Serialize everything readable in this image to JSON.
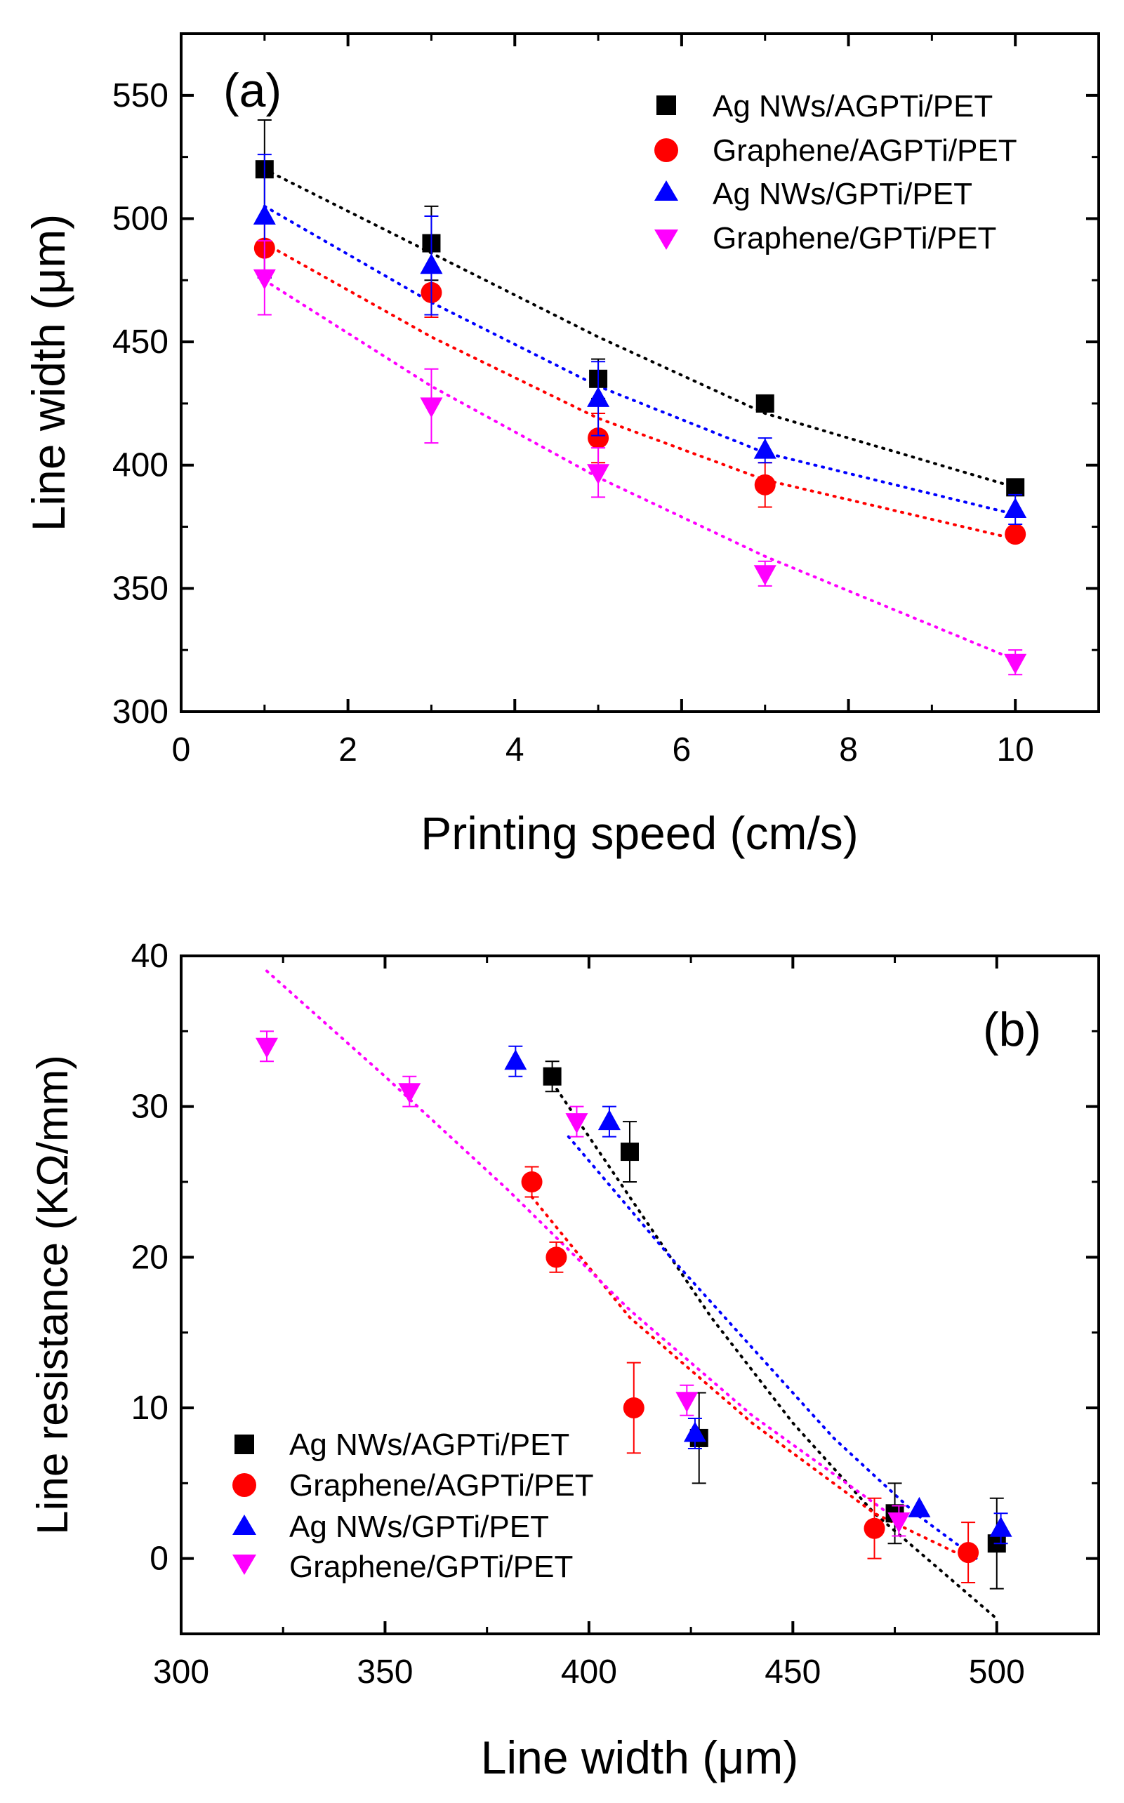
{
  "chart_data": [
    {
      "id": "a",
      "type": "scatter",
      "panel_label": "(a)",
      "xlabel": "Printing speed (cm/s)",
      "ylabel": "Line width (μm)",
      "xlim": [
        0,
        11
      ],
      "ylim": [
        300,
        575
      ],
      "x_ticks": [
        0,
        2,
        4,
        6,
        8,
        10
      ],
      "x_tick_labels": [
        "0",
        "2",
        "4",
        "6",
        "8",
        "10"
      ],
      "y_ticks": [
        300,
        350,
        400,
        450,
        500,
        550
      ],
      "y_tick_labels": [
        "300",
        "350",
        "400",
        "450",
        "500",
        "550"
      ],
      "legend_position": "top-right",
      "series": [
        {
          "name": "Ag NWs/AGPTi/PET",
          "marker": "square",
          "color": "#000000",
          "points": [
            {
              "x": 1,
              "y": 520,
              "err": 20
            },
            {
              "x": 3,
              "y": 490,
              "err": 15
            },
            {
              "x": 5,
              "y": 435,
              "err": 8
            },
            {
              "x": 7,
              "y": 425,
              "err": 0
            },
            {
              "x": 10,
              "y": 391,
              "err": 0
            }
          ],
          "trend": [
            [
              1,
              520
            ],
            [
              3,
              486
            ],
            [
              5,
              452
            ],
            [
              7,
              421
            ],
            [
              10,
              391
            ]
          ]
        },
        {
          "name": "Graphene/AGPTi/PET",
          "marker": "circle",
          "color": "#ff0000",
          "points": [
            {
              "x": 1,
              "y": 488,
              "err": 12
            },
            {
              "x": 3,
              "y": 470,
              "err": 10
            },
            {
              "x": 5,
              "y": 411,
              "err": 10
            },
            {
              "x": 7,
              "y": 392,
              "err": 9
            },
            {
              "x": 10,
              "y": 372,
              "err": 0
            }
          ],
          "trend": [
            [
              1,
              490
            ],
            [
              3,
              452
            ],
            [
              5,
              419
            ],
            [
              7,
              394
            ],
            [
              10,
              370
            ]
          ]
        },
        {
          "name": "Ag NWs/GPTi/PET",
          "marker": "triangle-up",
          "color": "#0000ff",
          "points": [
            {
              "x": 1,
              "y": 501,
              "err": 25
            },
            {
              "x": 3,
              "y": 481,
              "err": 20
            },
            {
              "x": 5,
              "y": 427,
              "err": 15
            },
            {
              "x": 7,
              "y": 406,
              "err": 5
            },
            {
              "x": 10,
              "y": 382,
              "err": 6
            }
          ],
          "trend": [
            [
              1,
              505
            ],
            [
              3,
              466
            ],
            [
              5,
              432
            ],
            [
              7,
              405
            ],
            [
              10,
              380
            ]
          ]
        },
        {
          "name": "Graphene/GPTi/PET",
          "marker": "triangle-down",
          "color": "#ff00ff",
          "points": [
            {
              "x": 1,
              "y": 476,
              "err": 15
            },
            {
              "x": 3,
              "y": 424,
              "err": 15
            },
            {
              "x": 5,
              "y": 397,
              "err": 10
            },
            {
              "x": 7,
              "y": 356,
              "err": 5
            },
            {
              "x": 10,
              "y": 320,
              "err": 5
            }
          ],
          "trend": [
            [
              1,
              475
            ],
            [
              3,
              432
            ],
            [
              5,
              395
            ],
            [
              7,
              363
            ],
            [
              10,
              321
            ]
          ]
        }
      ]
    },
    {
      "id": "b",
      "type": "scatter",
      "panel_label": "(b)",
      "xlabel": "Line width (μm)",
      "ylabel": "Line resistance (KΩ/mm)",
      "xlim": [
        300,
        525
      ],
      "ylim": [
        -5,
        40
      ],
      "x_ticks": [
        300,
        350,
        400,
        450,
        500
      ],
      "x_tick_labels": [
        "300",
        "350",
        "400",
        "450",
        "500"
      ],
      "y_ticks": [
        0,
        10,
        20,
        30,
        40
      ],
      "y_tick_labels": [
        "0",
        "10",
        "20",
        "30",
        "40"
      ],
      "legend_position": "bottom-left",
      "series": [
        {
          "name": "Ag NWs/AGPTi/PET",
          "marker": "square",
          "color": "#000000",
          "points": [
            {
              "x": 391,
              "y": 32,
              "err": 1
            },
            {
              "x": 410,
              "y": 27,
              "err": 2
            },
            {
              "x": 427,
              "y": 8,
              "err": 3
            },
            {
              "x": 475,
              "y": 3,
              "err": 2
            },
            {
              "x": 500,
              "y": 1,
              "err": 3
            }
          ],
          "trend": [
            [
              390,
              32
            ],
            [
              410,
              24
            ],
            [
              430,
              16
            ],
            [
              450,
              9
            ],
            [
              470,
              3
            ],
            [
              500,
              -4
            ]
          ]
        },
        {
          "name": "Graphene/AGPTi/PET",
          "marker": "circle",
          "color": "#ff0000",
          "points": [
            {
              "x": 386,
              "y": 25,
              "err": 1
            },
            {
              "x": 392,
              "y": 20,
              "err": 1
            },
            {
              "x": 411,
              "y": 10,
              "err": 3
            },
            {
              "x": 470,
              "y": 2,
              "err": 2
            },
            {
              "x": 493,
              "y": 0.4,
              "err": 2
            }
          ],
          "trend": [
            [
              386,
              24
            ],
            [
              410,
              16
            ],
            [
              440,
              9
            ],
            [
              470,
              3
            ],
            [
              493,
              0
            ]
          ]
        },
        {
          "name": "Ag NWs/GPTi/PET",
          "marker": "triangle-up",
          "color": "#0000ff",
          "points": [
            {
              "x": 382,
              "y": 33,
              "err": 1
            },
            {
              "x": 405,
              "y": 29,
              "err": 1
            },
            {
              "x": 426,
              "y": 8.3,
              "err": 1
            },
            {
              "x": 481,
              "y": 3.3,
              "err": 0
            },
            {
              "x": 501,
              "y": 2,
              "err": 1
            }
          ],
          "trend": [
            [
              395,
              28
            ],
            [
              420,
              20
            ],
            [
              440,
              14
            ],
            [
              460,
              8
            ],
            [
              480,
              3
            ],
            [
              495,
              0
            ]
          ]
        },
        {
          "name": "Graphene/GPTi/PET",
          "marker": "triangle-down",
          "color": "#ff00ff",
          "points": [
            {
              "x": 321,
              "y": 34,
              "err": 1
            },
            {
              "x": 356,
              "y": 31,
              "err": 1
            },
            {
              "x": 397,
              "y": 29,
              "err": 1
            },
            {
              "x": 424,
              "y": 10.5,
              "err": 1
            },
            {
              "x": 476,
              "y": 2.5,
              "err": 1
            }
          ],
          "trend": [
            [
              321,
              39
            ],
            [
              350,
              32
            ],
            [
              380,
              24.5
            ],
            [
              410,
              16.5
            ],
            [
              440,
              9.5
            ],
            [
              476,
              2.5
            ]
          ]
        }
      ]
    }
  ]
}
